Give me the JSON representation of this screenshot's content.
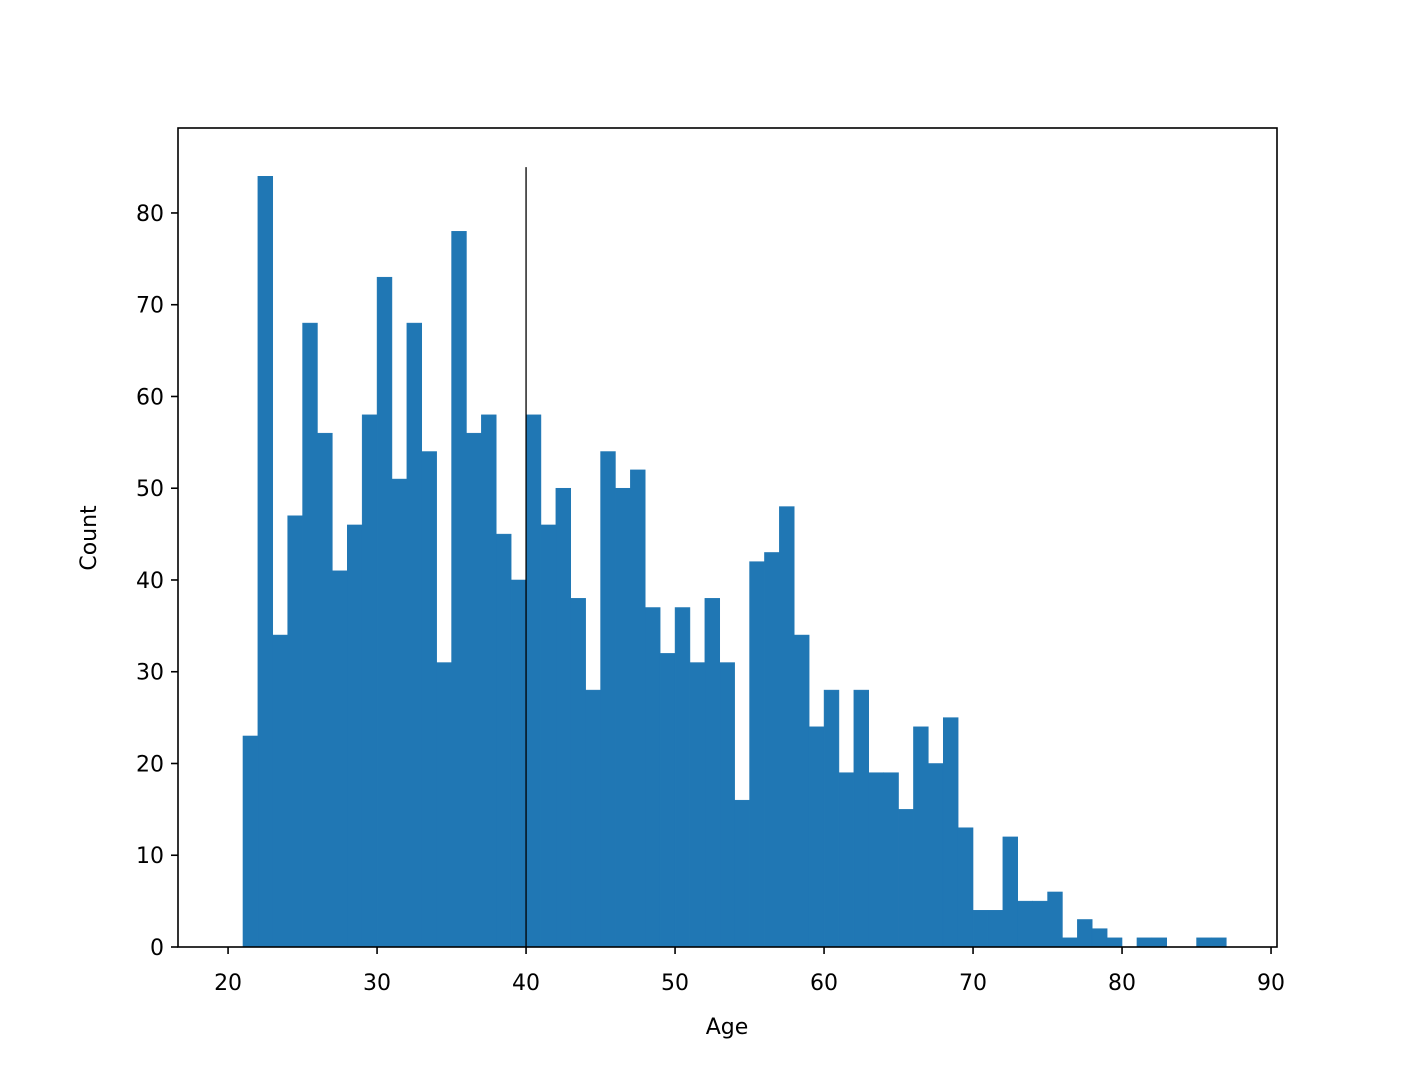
{
  "chart_data": {
    "type": "histogram",
    "xlabel": "Age",
    "ylabel": "Count",
    "color": "#2077b4",
    "bins": [
      21,
      22,
      23,
      24,
      25,
      26,
      27,
      28,
      29,
      30,
      31,
      32,
      33,
      34,
      35,
      36,
      37,
      38,
      39,
      40,
      41,
      42,
      43,
      44,
      45,
      46,
      47,
      48,
      49,
      50,
      51,
      52,
      53,
      54,
      55,
      56,
      57,
      58,
      59,
      60,
      61,
      62,
      63,
      64,
      65,
      66,
      67,
      68,
      69,
      70,
      71,
      72,
      73,
      74,
      75,
      76,
      77,
      78,
      79,
      80,
      81,
      82,
      83,
      84,
      85,
      86,
      87
    ],
    "values": [
      23,
      84,
      34,
      47,
      68,
      56,
      41,
      46,
      58,
      73,
      51,
      68,
      54,
      31,
      78,
      56,
      58,
      45,
      40,
      58,
      46,
      50,
      38,
      28,
      54,
      50,
      52,
      37,
      32,
      37,
      31,
      38,
      31,
      16,
      42,
      43,
      48,
      34,
      24,
      28,
      19,
      28,
      19,
      19,
      15,
      24,
      20,
      25,
      13,
      4,
      4,
      12,
      5,
      5,
      6,
      1,
      3,
      2,
      1,
      0,
      1,
      1,
      0,
      0,
      1,
      1
    ],
    "vlines": [
      {
        "x": 40,
        "ymin": 0,
        "ymax": 85,
        "color": "#000000"
      }
    ],
    "xlim": [
      16.64,
      90.4
    ],
    "ylim": [
      0,
      89.26
    ],
    "xticks": [
      20,
      30,
      40,
      50,
      60,
      70,
      80,
      90
    ],
    "yticks": [
      0,
      10,
      20,
      30,
      40,
      50,
      60,
      70,
      80
    ]
  }
}
